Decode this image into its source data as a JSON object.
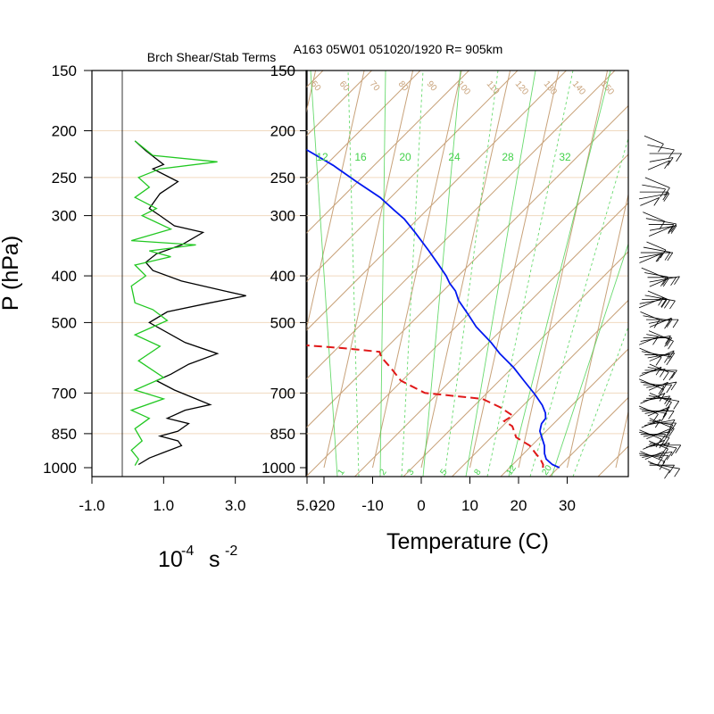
{
  "colors": {
    "background": "#ffffff",
    "axis": "#000000",
    "skewt_grid": "#c8a27a",
    "pressure_grid": "#f0d9bf",
    "mixing_ratio": "#43d14a",
    "temperature": "#0018f0",
    "dewpoint": "#e01818",
    "wind": "#000000",
    "shear_term": "#000000",
    "stab_term": "#22c822"
  },
  "header": {
    "sounding_title": "A163 05W01 051020/1920 R= 905km",
    "left_panel_title": "Brch Shear/Stab Terms"
  },
  "left_panel": {
    "ylabel": "P (hPa)",
    "xlabel_base": "10",
    "xlabel_exp": "-4",
    "xlabel_unit": "s",
    "xlabel_unit_exp": "-2"
  },
  "right_panel": {
    "xlabel": "Temperature (C)"
  },
  "chart_data": [
    {
      "type": "line",
      "title": "Brch Shear/Stab Terms",
      "ylabel": "P (hPa)",
      "xlabel": "10-4 s-2",
      "y_scale": "log",
      "ylim": [
        1000,
        150
      ],
      "xlim": [
        -1.0,
        5.0
      ],
      "y_ticks": [
        150,
        200,
        250,
        300,
        400,
        500,
        700,
        850,
        1000
      ],
      "x_tick_labels": [
        "-1.0",
        "1.0",
        "3.0",
        "5.0"
      ],
      "x_tick_values": [
        -1.0,
        1.0,
        3.0,
        5.0
      ],
      "series": [
        {
          "color": "#000000",
          "points": [
            [
              0.2,
              210
            ],
            [
              0.5,
              220
            ],
            [
              1.0,
              235
            ],
            [
              0.7,
              240
            ],
            [
              1.4,
              255
            ],
            [
              0.9,
              270
            ],
            [
              0.6,
              290
            ],
            [
              0.9,
              300
            ],
            [
              1.3,
              315
            ],
            [
              2.1,
              325
            ],
            [
              1.5,
              345
            ],
            [
              0.8,
              360
            ],
            [
              0.5,
              375
            ],
            [
              0.7,
              390
            ],
            [
              1.5,
              410
            ],
            [
              2.7,
              430
            ],
            [
              3.3,
              440
            ],
            [
              2.3,
              455
            ],
            [
              1.1,
              475
            ],
            [
              0.6,
              500
            ],
            [
              1.6,
              550
            ],
            [
              2.5,
              580
            ],
            [
              1.7,
              610
            ],
            [
              1.2,
              640
            ],
            [
              0.8,
              660
            ],
            [
              1.3,
              690
            ],
            [
              1.9,
              720
            ],
            [
              2.3,
              740
            ],
            [
              1.6,
              760
            ],
            [
              1.1,
              790
            ],
            [
              1.7,
              810
            ],
            [
              1.4,
              840
            ],
            [
              0.9,
              860
            ],
            [
              1.4,
              880
            ],
            [
              1.5,
              900
            ],
            [
              1.0,
              930
            ],
            [
              0.6,
              955
            ],
            [
              0.3,
              985
            ]
          ]
        },
        {
          "color": "#22c822",
          "points": [
            [
              0.2,
              210
            ],
            [
              0.7,
              225
            ],
            [
              2.5,
              232
            ],
            [
              0.9,
              240
            ],
            [
              0.3,
              250
            ],
            [
              0.6,
              262
            ],
            [
              0.2,
              275
            ],
            [
              0.8,
              290
            ],
            [
              0.4,
              300
            ],
            [
              1.2,
              320
            ],
            [
              0.1,
              338
            ],
            [
              1.9,
              345
            ],
            [
              0.6,
              355
            ],
            [
              1.2,
              365
            ],
            [
              0.2,
              380
            ],
            [
              0.5,
              400
            ],
            [
              0.1,
              420
            ],
            [
              0.2,
              455
            ],
            [
              0.7,
              470
            ],
            [
              1.1,
              495
            ],
            [
              0.2,
              530
            ],
            [
              0.9,
              560
            ],
            [
              0.3,
              600
            ],
            [
              1.0,
              650
            ],
            [
              0.2,
              690
            ],
            [
              1.0,
              720
            ],
            [
              0.1,
              760
            ],
            [
              0.6,
              790
            ],
            [
              0.2,
              830
            ],
            [
              0.4,
              880
            ],
            [
              0.1,
              920
            ],
            [
              0.3,
              960
            ],
            [
              0.2,
              990
            ]
          ]
        }
      ]
    },
    {
      "type": "line",
      "subtype": "skew-T log-P sounding",
      "title": "A163 05W01 051020/1920 R= 905km",
      "xlabel": "Temperature (C)",
      "ylabel": "P (hPa)",
      "y_scale": "log",
      "ylim": [
        1000,
        150
      ],
      "xlim": [
        -23,
        42
      ],
      "x_ticks": [
        -20,
        -10,
        0,
        10,
        20,
        30
      ],
      "y_ticks": [
        150,
        200,
        250,
        300,
        400,
        500,
        700,
        850,
        1000
      ],
      "grid": true,
      "isotherm_labels": [
        "50",
        "60",
        "70",
        "80",
        "90",
        "100",
        "110",
        "120",
        "130",
        "140",
        "150"
      ],
      "mixing_ratio_labels_top": [
        "12",
        "16",
        "20",
        "24",
        "28",
        "32"
      ],
      "mixing_ratio_labels_bottom": [
        "1",
        "2",
        "3",
        "5",
        "8",
        "12",
        "20"
      ],
      "series": [
        {
          "kind": "temperature",
          "color": "#0018f0",
          "points": [
            [
              28.4,
              1000
            ],
            [
              26.8,
              985
            ],
            [
              25.3,
              960
            ],
            [
              24.7,
              935
            ],
            [
              24.3,
              900
            ],
            [
              23.4,
              865
            ],
            [
              22.7,
              840
            ],
            [
              22.7,
              820
            ],
            [
              22.7,
              810
            ],
            [
              23.3,
              790
            ],
            [
              23.0,
              770
            ],
            [
              22.0,
              742
            ],
            [
              20.0,
              705
            ],
            [
              17.1,
              660
            ],
            [
              14.4,
              620
            ],
            [
              10.9,
              580
            ],
            [
              8.6,
              550
            ],
            [
              4.8,
              510
            ],
            [
              2.5,
              480
            ],
            [
              0.0,
              450
            ],
            [
              -1.1,
              430
            ],
            [
              -2.6,
              415
            ],
            [
              -3.7,
              400
            ],
            [
              -5.7,
              380
            ],
            [
              -8.4,
              355
            ],
            [
              -12.1,
              325
            ],
            [
              -14.9,
              305
            ],
            [
              -17.5,
              292
            ],
            [
              -20.9,
              275
            ],
            [
              -26.5,
              255
            ],
            [
              -32.0,
              236
            ],
            [
              -38.6,
              218
            ],
            [
              -44.0,
              203
            ]
          ]
        },
        {
          "kind": "dewpoint",
          "color": "#e01818",
          "points": [
            [
              25.0,
              1000
            ],
            [
              24.9,
              985
            ],
            [
              24.1,
              960
            ],
            [
              22.9,
              935
            ],
            [
              21.3,
              900
            ],
            [
              18.1,
              865
            ],
            [
              17.4,
              840
            ],
            [
              16.8,
              820
            ],
            [
              14.9,
              800
            ],
            [
              16.4,
              780
            ],
            [
              13.5,
              750
            ],
            [
              9.4,
              720
            ],
            [
              -2.7,
              700
            ],
            [
              -8.2,
              660
            ],
            [
              -10.9,
              620
            ],
            [
              -13.3,
              590
            ],
            [
              -13.9,
              575
            ],
            [
              -21.5,
              565
            ],
            [
              -31.8,
              555
            ],
            [
              -36.7,
              530
            ],
            [
              -39.9,
              515
            ],
            [
              -38.0,
              495
            ],
            [
              -41.3,
              480
            ],
            [
              -47.8,
              460
            ],
            [
              -51.0,
              448
            ],
            [
              -52.0,
              445
            ],
            [
              -51.0,
              390
            ],
            [
              -53.7,
              383
            ],
            [
              -49.5,
              370
            ],
            [
              -49.1,
              360
            ],
            [
              -51.2,
              345
            ],
            [
              -48.7,
              330
            ],
            [
              -48.0,
              320
            ],
            [
              -47.8,
              310
            ],
            [
              -46.5,
              302
            ],
            [
              -53.2,
              300
            ],
            [
              -58.0,
              270
            ],
            [
              -64.5,
              250
            ],
            [
              -67.5,
              235
            ],
            [
              -71.3,
              220
            ]
          ]
        },
        {
          "kind": "wind_barbs",
          "color": "#000000",
          "note": "wind barbs plotted along right edge from ~200 to ~1000 hPa"
        }
      ]
    }
  ]
}
